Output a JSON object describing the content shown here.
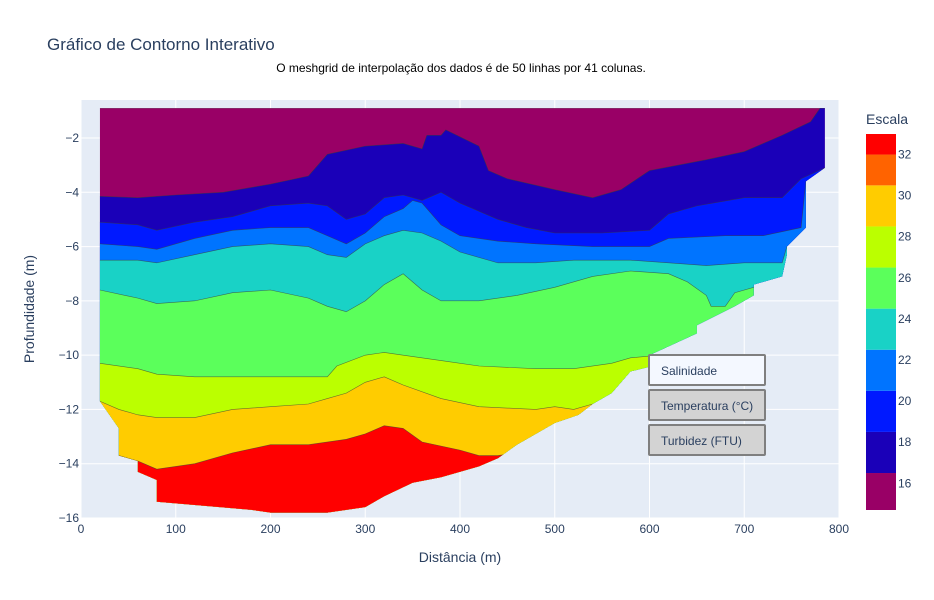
{
  "title": "Gráfico de Contorno Interativo",
  "subtitle": "O meshgrid de interpolação dos dados é de 50 linhas por 41 colunas.",
  "menu": {
    "items": [
      {
        "label": "Salinidade",
        "active": true
      },
      {
        "label": "Temperatura (°C)",
        "active": false
      },
      {
        "label": "Turbidez (FTU)",
        "active": false
      }
    ]
  },
  "chart_data": {
    "type": "contour",
    "xlabel": "Distância (m)",
    "ylabel": "Profundidade (m)",
    "xlim": [
      0,
      800
    ],
    "ylim": [
      -16,
      -0.6
    ],
    "xticks": [
      0,
      100,
      200,
      300,
      400,
      500,
      600,
      700,
      800
    ],
    "yticks": [
      -16,
      -14,
      -12,
      -10,
      -8,
      -6,
      -4,
      -2
    ],
    "colorbar": {
      "title": "Escala",
      "range": [
        14.7,
        33
      ],
      "ticks": [
        16,
        18,
        20,
        22,
        24,
        26,
        28,
        30,
        32
      ],
      "levels": [
        {
          "from": 14.7,
          "to": 16.5,
          "color": "#990066"
        },
        {
          "from": 16.5,
          "to": 18.5,
          "color": "#1a00b8"
        },
        {
          "from": 18.5,
          "to": 20.5,
          "color": "#0019ff"
        },
        {
          "from": 20.5,
          "to": 22.5,
          "color": "#0074ff"
        },
        {
          "from": 22.5,
          "to": 24.5,
          "color": "#19d2c6"
        },
        {
          "from": 24.5,
          "to": 26.5,
          "color": "#5bff5b"
        },
        {
          "from": 26.5,
          "to": 28.5,
          "color": "#bbff00"
        },
        {
          "from": 28.5,
          "to": 30.5,
          "color": "#ffcc00"
        },
        {
          "from": 30.5,
          "to": 32,
          "color": "#ff6300"
        },
        {
          "from": 32,
          "to": 33,
          "color": "#ff0000"
        }
      ]
    },
    "bands": [
      {
        "level": 16,
        "color": "#990066",
        "top": [
          [
            20,
            -0.9
          ],
          [
            780,
            -0.9
          ]
        ]
      },
      {
        "level": 18,
        "color": "#1a00b8",
        "top": [
          [
            20,
            -4.15
          ],
          [
            60,
            -4.2
          ],
          [
            100,
            -4.1
          ],
          [
            150,
            -4.0
          ],
          [
            200,
            -3.7
          ],
          [
            240,
            -3.4
          ],
          [
            260,
            -2.6
          ],
          [
            300,
            -2.3
          ],
          [
            340,
            -2.2
          ],
          [
            360,
            -2.4
          ],
          [
            365,
            -1.9
          ],
          [
            380,
            -1.9
          ],
          [
            385,
            -1.7
          ],
          [
            420,
            -2.3
          ],
          [
            430,
            -3.2
          ],
          [
            450,
            -3.5
          ],
          [
            500,
            -3.9
          ],
          [
            540,
            -4.2
          ],
          [
            570,
            -3.9
          ],
          [
            600,
            -3.2
          ],
          [
            660,
            -2.8
          ],
          [
            700,
            -2.5
          ],
          [
            740,
            -1.9
          ],
          [
            770,
            -1.4
          ],
          [
            780,
            -0.9
          ],
          [
            785,
            -0.9
          ]
        ]
      },
      {
        "level": 20,
        "color": "#0019ff",
        "top": [
          [
            20,
            -5.1
          ],
          [
            60,
            -5.2
          ],
          [
            80,
            -5.4
          ],
          [
            120,
            -5.1
          ],
          [
            160,
            -4.9
          ],
          [
            200,
            -4.5
          ],
          [
            240,
            -4.4
          ],
          [
            260,
            -4.5
          ],
          [
            280,
            -5.0
          ],
          [
            300,
            -4.8
          ],
          [
            320,
            -4.2
          ],
          [
            340,
            -4.1
          ],
          [
            360,
            -4.3
          ],
          [
            380,
            -4.0
          ],
          [
            400,
            -4.4
          ],
          [
            420,
            -4.7
          ],
          [
            440,
            -5.0
          ],
          [
            470,
            -5.3
          ],
          [
            500,
            -5.5
          ],
          [
            550,
            -5.5
          ],
          [
            600,
            -5.4
          ],
          [
            620,
            -4.8
          ],
          [
            650,
            -4.5
          ],
          [
            700,
            -4.2
          ],
          [
            740,
            -4.2
          ],
          [
            760,
            -3.5
          ],
          [
            785,
            -3.1
          ]
        ]
      },
      {
        "level": 22,
        "color": "#0074ff",
        "top": [
          [
            20,
            -5.9
          ],
          [
            60,
            -6.0
          ],
          [
            80,
            -6.1
          ],
          [
            120,
            -5.7
          ],
          [
            160,
            -5.4
          ],
          [
            200,
            -5.3
          ],
          [
            240,
            -5.3
          ],
          [
            260,
            -5.6
          ],
          [
            280,
            -5.9
          ],
          [
            300,
            -5.5
          ],
          [
            320,
            -4.9
          ],
          [
            340,
            -4.6
          ],
          [
            350,
            -4.3
          ],
          [
            360,
            -4.4
          ],
          [
            380,
            -5.2
          ],
          [
            400,
            -5.6
          ],
          [
            440,
            -5.8
          ],
          [
            480,
            -5.9
          ],
          [
            540,
            -6.0
          ],
          [
            600,
            -6.0
          ],
          [
            620,
            -5.7
          ],
          [
            680,
            -5.6
          ],
          [
            720,
            -5.6
          ],
          [
            760,
            -5.3
          ],
          [
            765,
            -3.6
          ]
        ]
      },
      {
        "level": 24,
        "color": "#19d2c6",
        "top": [
          [
            20,
            -6.5
          ],
          [
            60,
            -6.5
          ],
          [
            80,
            -6.6
          ],
          [
            120,
            -6.3
          ],
          [
            160,
            -6.0
          ],
          [
            200,
            -5.9
          ],
          [
            240,
            -6.0
          ],
          [
            260,
            -6.3
          ],
          [
            280,
            -6.4
          ],
          [
            300,
            -5.9
          ],
          [
            320,
            -5.6
          ],
          [
            340,
            -5.4
          ],
          [
            360,
            -5.5
          ],
          [
            380,
            -5.8
          ],
          [
            400,
            -6.2
          ],
          [
            440,
            -6.6
          ],
          [
            480,
            -6.6
          ],
          [
            520,
            -6.5
          ],
          [
            580,
            -6.5
          ],
          [
            620,
            -6.6
          ],
          [
            660,
            -6.7
          ],
          [
            700,
            -6.6
          ],
          [
            740,
            -6.6
          ],
          [
            745,
            -6.0
          ]
        ]
      },
      {
        "level": 26,
        "color": "#5bff5b",
        "top": [
          [
            20,
            -7.6
          ],
          [
            60,
            -7.9
          ],
          [
            80,
            -8.1
          ],
          [
            120,
            -8.0
          ],
          [
            160,
            -7.7
          ],
          [
            200,
            -7.6
          ],
          [
            240,
            -7.9
          ],
          [
            260,
            -8.2
          ],
          [
            280,
            -8.4
          ],
          [
            300,
            -8.0
          ],
          [
            320,
            -7.4
          ],
          [
            340,
            -7.0
          ],
          [
            360,
            -7.6
          ],
          [
            380,
            -8.0
          ],
          [
            420,
            -8.0
          ],
          [
            460,
            -7.8
          ],
          [
            500,
            -7.5
          ],
          [
            540,
            -7.1
          ],
          [
            580,
            -6.9
          ],
          [
            620,
            -7.0
          ],
          [
            640,
            -7.3
          ],
          [
            660,
            -7.8
          ],
          [
            665,
            -8.2
          ],
          [
            680,
            -8.2
          ],
          [
            690,
            -7.7
          ],
          [
            720,
            -7.4
          ],
          [
            740,
            -7.2
          ],
          [
            740,
            -7.1
          ]
        ]
      },
      {
        "level": 28,
        "color": "#bbff00",
        "top": [
          [
            20,
            -10.3
          ],
          [
            60,
            -10.5
          ],
          [
            80,
            -10.7
          ],
          [
            120,
            -10.8
          ],
          [
            160,
            -10.8
          ],
          [
            200,
            -10.8
          ],
          [
            240,
            -10.8
          ],
          [
            260,
            -10.8
          ],
          [
            270,
            -10.4
          ],
          [
            300,
            -10.0
          ],
          [
            320,
            -9.9
          ],
          [
            340,
            -10.0
          ],
          [
            380,
            -10.2
          ],
          [
            420,
            -10.4
          ],
          [
            480,
            -10.5
          ],
          [
            520,
            -10.5
          ],
          [
            560,
            -10.3
          ],
          [
            580,
            -10.1
          ],
          [
            610,
            -10.0
          ]
        ]
      },
      {
        "level": 30,
        "color": "#ffcc00",
        "top": [
          [
            20,
            -11.7
          ],
          [
            40,
            -12.0
          ],
          [
            60,
            -12.2
          ],
          [
            80,
            -12.3
          ],
          [
            120,
            -12.3
          ],
          [
            160,
            -12.0
          ],
          [
            200,
            -11.9
          ],
          [
            240,
            -11.8
          ],
          [
            260,
            -11.6
          ],
          [
            280,
            -11.4
          ],
          [
            300,
            -11.0
          ],
          [
            320,
            -10.8
          ],
          [
            340,
            -11.1
          ],
          [
            380,
            -11.6
          ],
          [
            420,
            -11.9
          ],
          [
            480,
            -12.0
          ],
          [
            500,
            -11.9
          ],
          [
            520,
            -12.0
          ],
          [
            540,
            -11.8
          ]
        ]
      },
      {
        "level": 32,
        "color": "#ff0000",
        "top": [
          [
            40,
            -13.7
          ],
          [
            60,
            -13.9
          ],
          [
            80,
            -14.2
          ],
          [
            120,
            -14.0
          ],
          [
            160,
            -13.6
          ],
          [
            200,
            -13.3
          ],
          [
            240,
            -13.3
          ],
          [
            280,
            -13.1
          ],
          [
            300,
            -12.9
          ],
          [
            320,
            -12.6
          ],
          [
            340,
            -12.7
          ],
          [
            360,
            -13.2
          ],
          [
            400,
            -13.5
          ],
          [
            420,
            -13.7
          ],
          [
            440,
            -13.7
          ],
          [
            460,
            -13.6
          ]
        ]
      }
    ],
    "domain": [
      [
        20,
        -0.9
      ],
      [
        785,
        -0.9
      ],
      [
        785,
        -3.1
      ],
      [
        765,
        -3.6
      ],
      [
        765,
        -5.3
      ],
      [
        745,
        -6.0
      ],
      [
        745,
        -6.3
      ],
      [
        740,
        -7.1
      ],
      [
        710,
        -7.4
      ],
      [
        710,
        -7.8
      ],
      [
        690,
        -8.2
      ],
      [
        650,
        -8.9
      ],
      [
        650,
        -9.2
      ],
      [
        600,
        -10.0
      ],
      [
        615,
        -10.0
      ],
      [
        615,
        -10.3
      ],
      [
        580,
        -10.6
      ],
      [
        560,
        -11.4
      ],
      [
        540,
        -11.8
      ],
      [
        525,
        -12.2
      ],
      [
        500,
        -12.5
      ],
      [
        480,
        -12.9
      ],
      [
        460,
        -13.3
      ],
      [
        440,
        -13.8
      ],
      [
        420,
        -14.1
      ],
      [
        380,
        -14.5
      ],
      [
        350,
        -14.7
      ],
      [
        320,
        -15.2
      ],
      [
        300,
        -15.6
      ],
      [
        260,
        -15.8
      ],
      [
        200,
        -15.8
      ],
      [
        180,
        -15.7
      ],
      [
        80,
        -15.4
      ],
      [
        80,
        -14.6
      ],
      [
        60,
        -14.3
      ],
      [
        60,
        -13.9
      ],
      [
        40,
        -13.7
      ],
      [
        40,
        -12.7
      ],
      [
        20,
        -11.7
      ]
    ]
  }
}
